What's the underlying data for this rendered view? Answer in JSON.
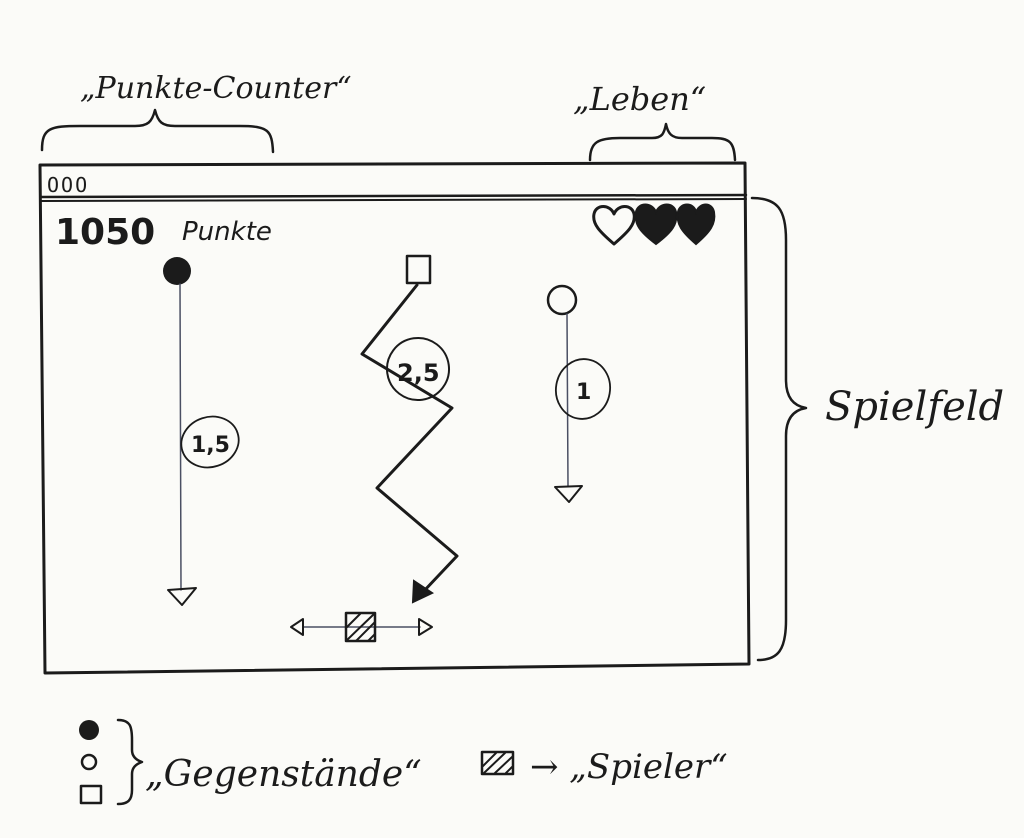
{
  "annotations": {
    "score_counter": "„Punkte-Counter“",
    "lives": "„Leben“",
    "playfield": "Spielfeld",
    "items": "„Gegenstände“",
    "player_legend": "→ „Spieler“"
  },
  "window": {
    "titlebar_buttons": "OOO"
  },
  "hud": {
    "score_value": "1050",
    "score_unit": "Punkte",
    "lives_total": 3,
    "lives_lost": 1
  },
  "objects": {
    "filled_circle_speed": "1,5",
    "square_speed": "2,5",
    "open_circle_speed": "1"
  },
  "colors": {
    "ink": "#1b1b1b",
    "paper": "#fbfbf8",
    "pencil": "#4a4f63"
  }
}
